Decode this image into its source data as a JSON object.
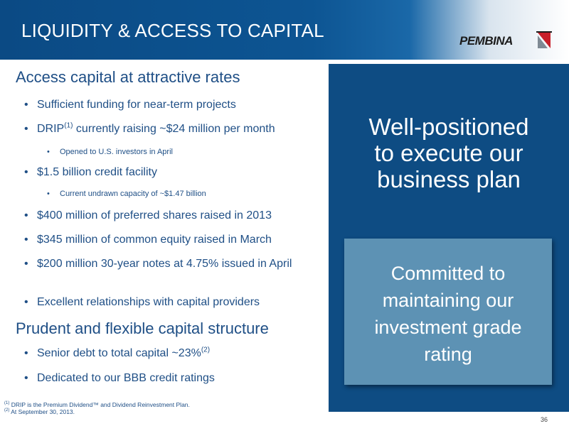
{
  "header": {
    "title": "LIQUIDITY & ACCESS TO CAPITAL",
    "logo_text": "PEMBINA"
  },
  "sections": [
    {
      "heading": "Access capital at attractive rates",
      "bullets": [
        {
          "text": "Sufficient funding for near-term projects"
        },
        {
          "text_before": "DRIP",
          "sup": "(1)",
          "text_after": " currently raising ~$24 million per month",
          "sub": "Opened to U.S. investors in April"
        },
        {
          "text": "$1.5 billion credit facility",
          "sub": "Current undrawn capacity of ~$1.47 billion"
        },
        {
          "text": "$400 million of preferred shares raised in 2013"
        },
        {
          "text": "$345 million of common equity raised in March"
        },
        {
          "text": "$200 million 30-year notes at 4.75% issued in April"
        },
        {
          "text": "Excellent relationships with capital providers"
        }
      ]
    },
    {
      "heading": "Prudent and flexible capital structure",
      "bullets": [
        {
          "text_before": "Senior debt to total capital ~23%",
          "sup": "(2)"
        },
        {
          "text": "Dedicated to our BBB credit ratings"
        }
      ]
    }
  ],
  "footnotes": [
    {
      "mark": "(1)",
      "text": " DRIP is the Premium Dividend™ and Dividend Reinvestment Plan."
    },
    {
      "mark": "(2)",
      "text": " At September 30, 2013."
    }
  ],
  "panel": {
    "headline_lines": [
      "Well-positioned",
      "to execute our",
      "business plan"
    ],
    "callout_lines": [
      "Committed to",
      "maintaining our",
      "investment grade",
      "rating"
    ]
  },
  "page_number": "36",
  "colors": {
    "brand_blue": "#0e4c83",
    "callout_blue": "#5d92b4",
    "text_blue": "#1f4f86"
  }
}
